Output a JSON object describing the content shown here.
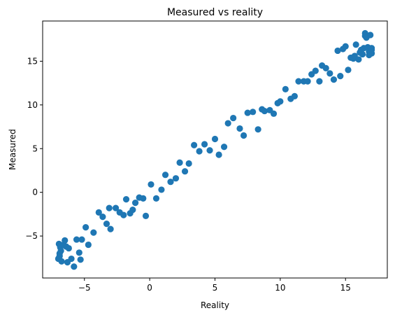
{
  "chart_data": {
    "type": "scatter",
    "title": "Measured vs reality",
    "xlabel": "Reality",
    "ylabel": "Measured",
    "xlim": [
      -8.2,
      18.2
    ],
    "ylim": [
      -9.8,
      19.6
    ],
    "xticks": [
      -5,
      0,
      5,
      10,
      15
    ],
    "yticks": [
      -5,
      0,
      5,
      10,
      15
    ],
    "xtick_labels": [
      "−5",
      "0",
      "5",
      "10",
      "15"
    ],
    "ytick_labels": [
      "−5",
      "0",
      "5",
      "10",
      "15"
    ],
    "grid": false,
    "marker_color": "#1f77b4",
    "series": [
      {
        "x": [
          -7.0,
          -6.9,
          -6.95,
          -6.85,
          -6.8,
          -6.9,
          -6.75,
          -6.6,
          -6.5,
          -6.4,
          -6.3,
          -6.2,
          -6.0,
          -5.8,
          -5.6,
          -5.4,
          -5.3,
          -5.2,
          -4.9,
          -4.7,
          -4.3,
          -3.9,
          -3.6,
          -3.3,
          -3.1,
          -3.0,
          -2.6,
          -2.3,
          -2.0,
          -1.8,
          -1.5,
          -1.3,
          -1.1,
          -0.8,
          -0.5,
          -0.3,
          0.1,
          0.5,
          0.9,
          1.2,
          1.6,
          2.0,
          2.3,
          2.7,
          3.0,
          3.4,
          3.8,
          4.2,
          4.6,
          5.0,
          5.3,
          5.7,
          6.0,
          6.4,
          6.9,
          7.2,
          7.5,
          7.9,
          8.3,
          8.6,
          8.8,
          9.2,
          9.5,
          9.8,
          10.0,
          10.4,
          10.8,
          11.1,
          11.4,
          11.8,
          12.1,
          12.4,
          12.7,
          13.0,
          13.2,
          13.5,
          13.8,
          14.1,
          14.4,
          14.6,
          14.8,
          15.0,
          15.2,
          15.4,
          15.6,
          15.7,
          15.8,
          16.0,
          16.1,
          16.2,
          16.3,
          16.4,
          16.5,
          16.5,
          16.6,
          16.7,
          16.8,
          16.8,
          16.9,
          17.0,
          17.0,
          17.0,
          16.9
        ],
        "y": [
          -7.6,
          -7.0,
          -5.9,
          -6.3,
          -6.7,
          -7.3,
          -7.9,
          -6.0,
          -5.5,
          -6.2,
          -8.0,
          -6.4,
          -7.6,
          -8.5,
          -5.4,
          -6.9,
          -7.7,
          -5.4,
          -4.0,
          -6.0,
          -4.6,
          -2.3,
          -2.8,
          -3.6,
          -1.8,
          -4.2,
          -1.8,
          -2.3,
          -2.6,
          -0.8,
          -2.4,
          -2.0,
          -1.2,
          -0.6,
          -0.7,
          -2.7,
          0.9,
          -0.7,
          0.3,
          2.0,
          1.2,
          1.6,
          3.4,
          2.4,
          3.3,
          5.4,
          4.7,
          5.5,
          4.8,
          6.1,
          4.3,
          5.2,
          7.9,
          8.5,
          7.3,
          6.5,
          9.1,
          9.2,
          7.2,
          9.5,
          9.3,
          9.4,
          9.0,
          10.2,
          10.4,
          11.8,
          10.7,
          11.0,
          12.7,
          12.7,
          12.7,
          13.5,
          13.9,
          12.7,
          14.5,
          14.2,
          13.6,
          12.9,
          16.2,
          13.3,
          16.4,
          16.7,
          14.0,
          15.4,
          15.3,
          15.6,
          16.9,
          15.2,
          16.0,
          16.3,
          15.8,
          16.5,
          18.2,
          17.9,
          17.7,
          16.6,
          16.1,
          15.7,
          18.0,
          16.3,
          15.9,
          16.5,
          15.9
        ]
      }
    ]
  }
}
